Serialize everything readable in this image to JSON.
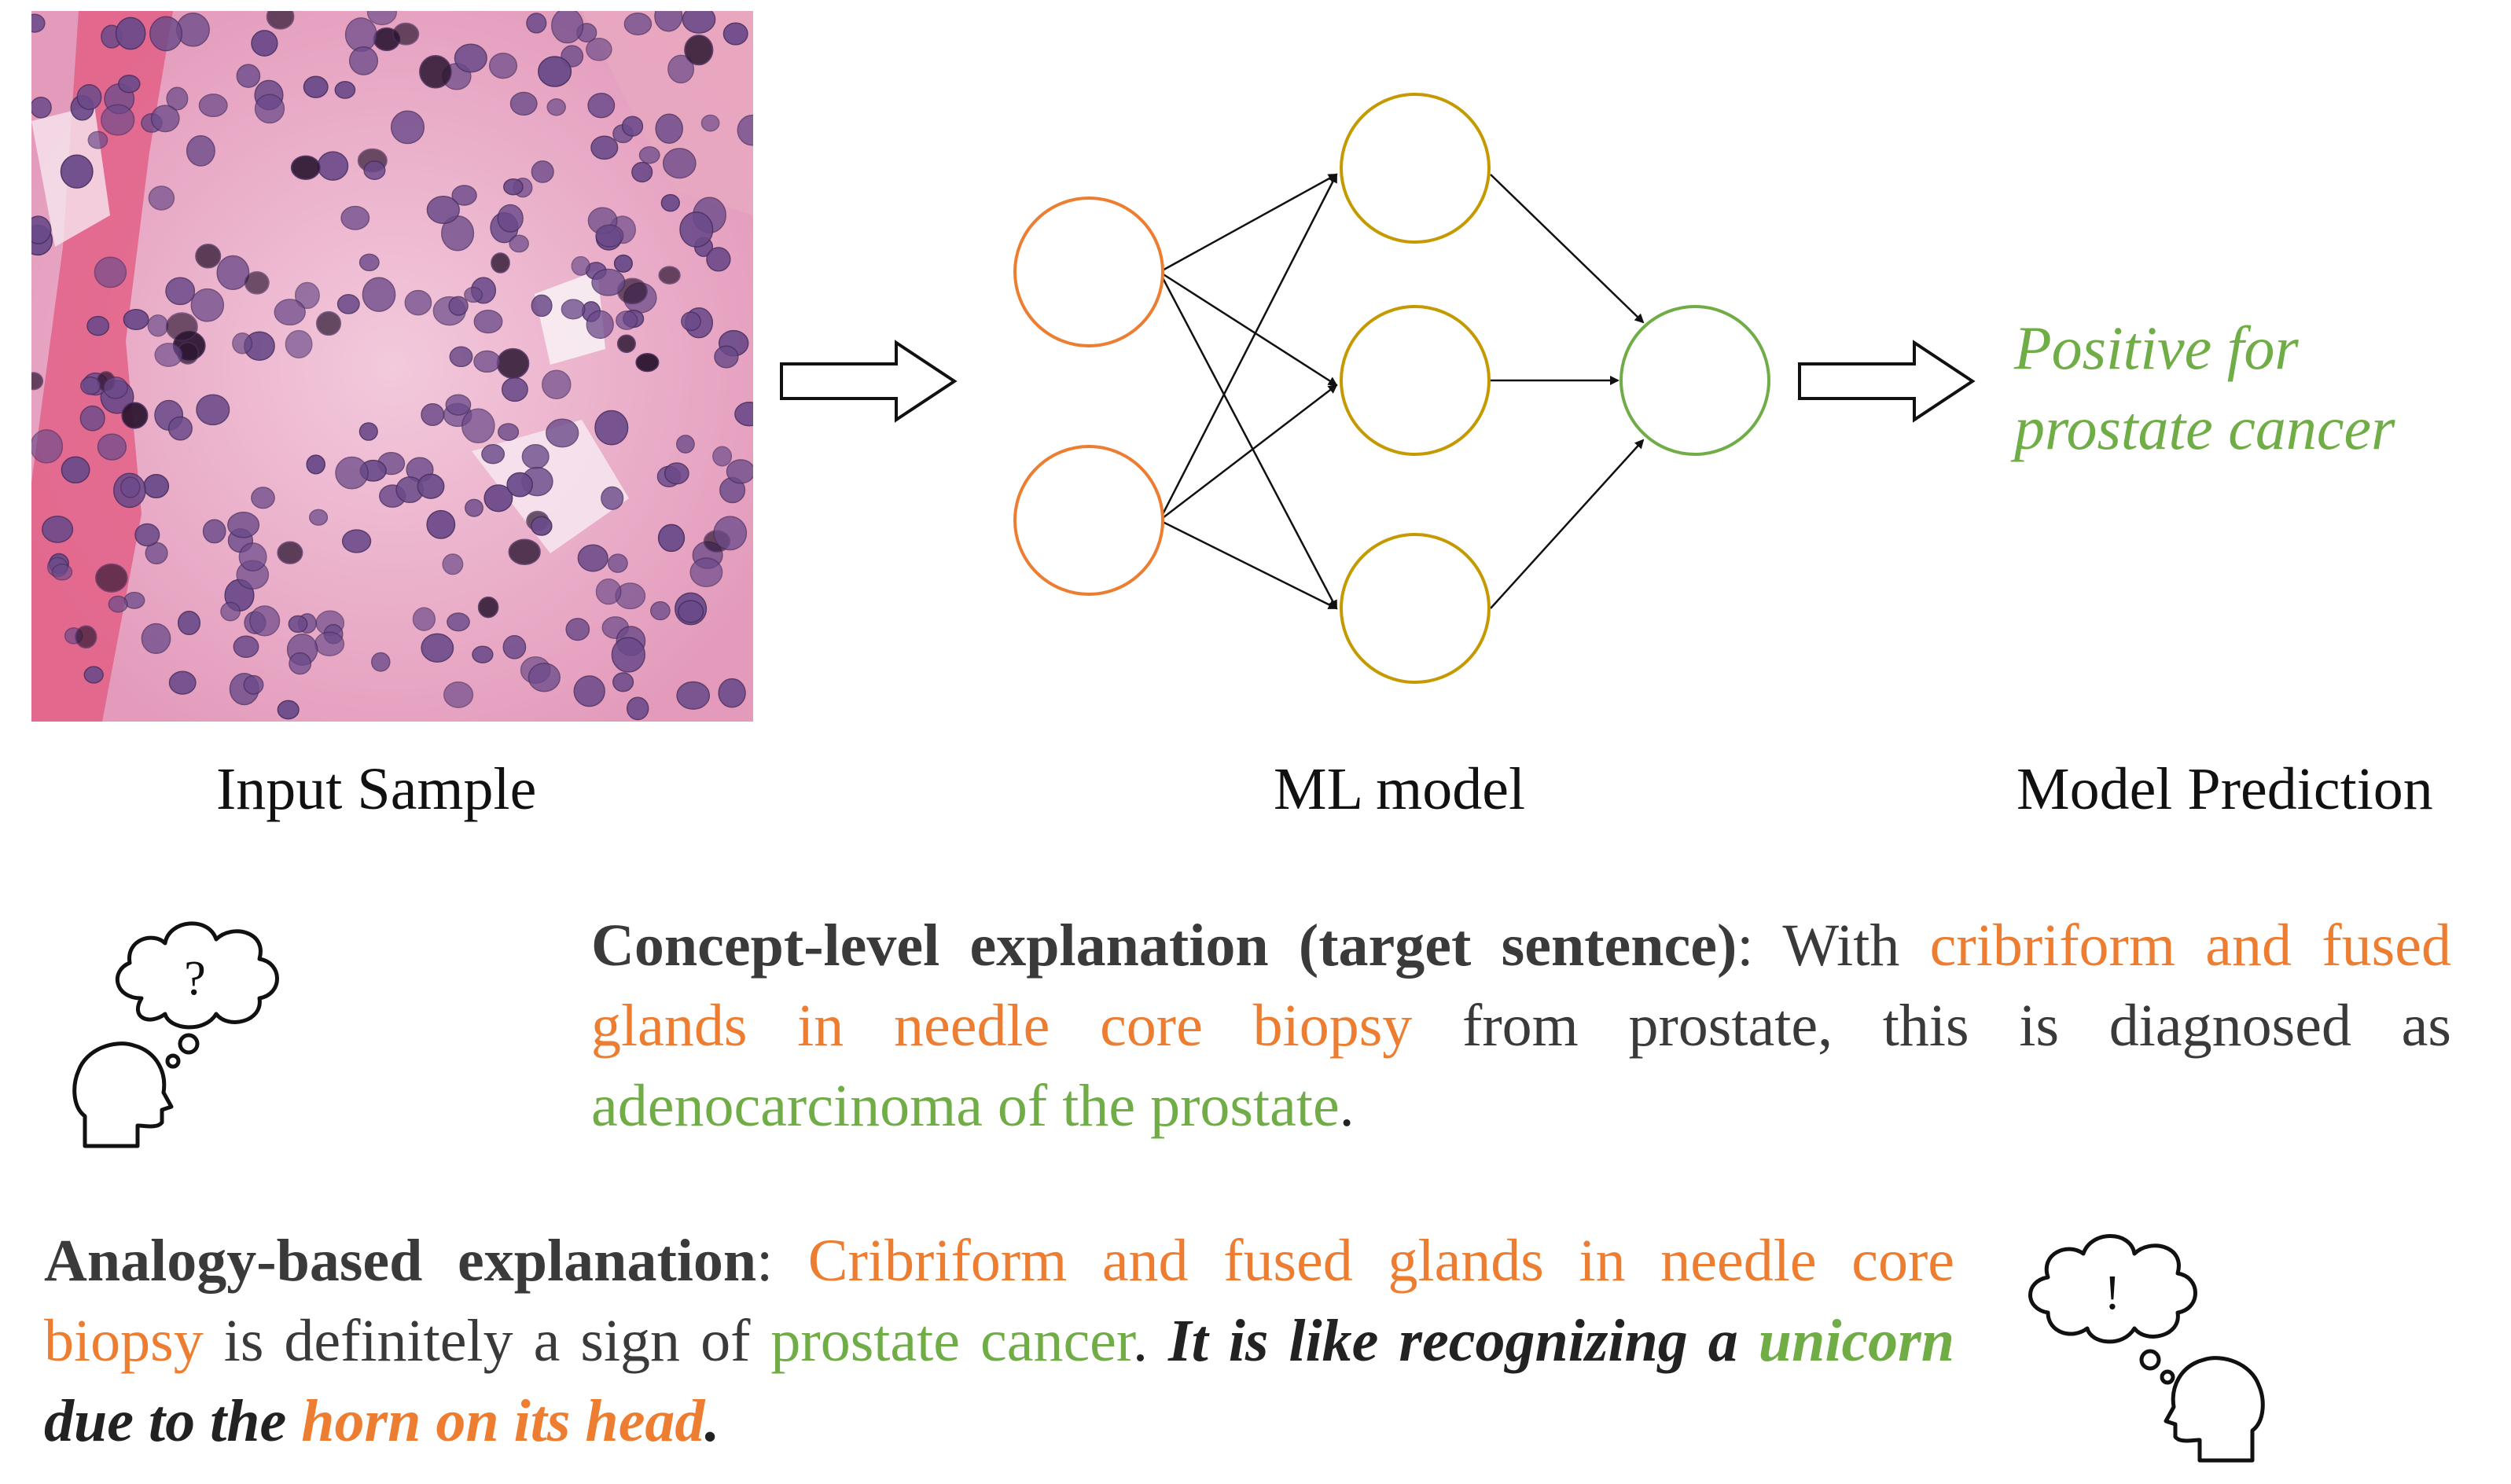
{
  "captions": {
    "input": "Input Sample",
    "model": "ML model",
    "prediction": "Model Prediction"
  },
  "prediction": {
    "line1": "Positive for",
    "line2": "prostate cancer"
  },
  "concept": {
    "heading": "Concept-level explanation (target sentence)",
    "colon": ": With ",
    "orange": "cribriform and fused glands in needle core biopsy",
    "mid": " from prostate, this is diagnosed as ",
    "green": "adenocarcinoma of the prostate",
    "end": "."
  },
  "analogy": {
    "heading": "Analogy-based explanation",
    "colon": ": ",
    "orange1": "Cribriform and fused glands in needle core biopsy",
    "mid1": " is definitely a sign of ",
    "green1": "prostate cancer",
    "mid2": ". ",
    "italic1": "It is like recognizing a ",
    "green2": "unicorn",
    "italic2": " due to the ",
    "orange2": "horn on its head",
    "end": "."
  },
  "thought_marks": {
    "question": "?",
    "exclaim": "!"
  },
  "colors": {
    "input_node": "#ED7D31",
    "hidden_node": "#C49A00",
    "output_node": "#70AD47",
    "tissue_bg": "#E8A0C0",
    "nucleus": "#6B4A8A"
  }
}
